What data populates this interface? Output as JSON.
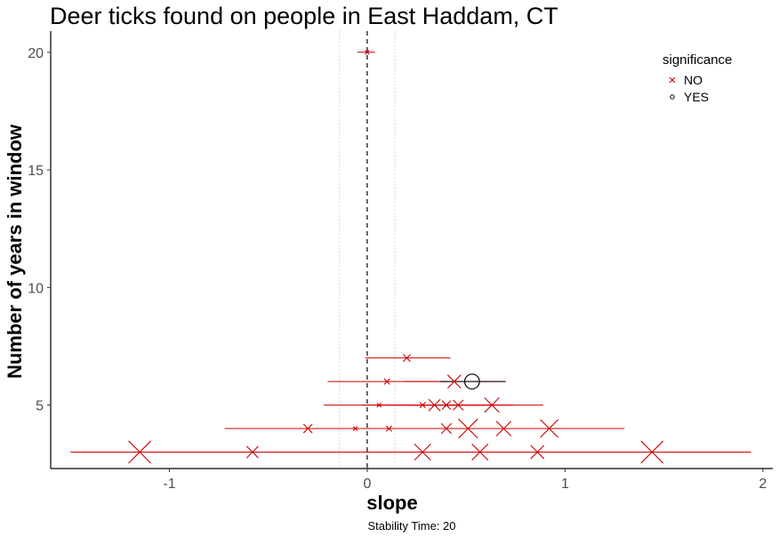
{
  "chart_data": {
    "type": "scatter",
    "title": "Deer ticks found on people in East Haddam, CT",
    "xlabel": "slope",
    "ylabel": "Number of years in window",
    "caption": "Stability Time: 20",
    "xlim": [
      -1.6,
      2.05
    ],
    "ylim": [
      2.3,
      20.9
    ],
    "x_ticks": [
      -1,
      0,
      1,
      2
    ],
    "y_ticks": [
      5,
      10,
      15,
      20
    ],
    "x_tick_labels": [
      "-1",
      "0",
      "1",
      "2"
    ],
    "y_tick_labels": [
      "5",
      "10",
      "15",
      "20"
    ],
    "reference_lines": {
      "dashed_x": 0,
      "dotted_x": [
        -0.14,
        0.14
      ]
    },
    "grid": false,
    "legend": {
      "title": "significance",
      "placement": "top-right",
      "entries": [
        {
          "label": "NO",
          "shape": "cross",
          "color": "#cc0000"
        },
        {
          "label": "YES",
          "shape": "circle",
          "color": "#000000"
        }
      ]
    },
    "colors": {
      "not_significant": "#cc0000",
      "significant": "#000000"
    },
    "points": [
      {
        "window": 20,
        "slope": 0.0,
        "lo": -0.05,
        "hi": 0.04,
        "sig": "NO",
        "size": 1
      },
      {
        "window": 7,
        "slope": 0.2,
        "lo": -0.01,
        "hi": 0.42,
        "sig": "NO",
        "size": 3
      },
      {
        "window": 6,
        "slope": 0.1,
        "lo": -0.2,
        "hi": 0.4,
        "sig": "NO",
        "size": 2
      },
      {
        "window": 6,
        "slope": 0.44,
        "lo": 0.19,
        "hi": 0.7,
        "sig": "NO",
        "size": 7
      },
      {
        "window": 6,
        "slope": 0.53,
        "lo": 0.37,
        "hi": 0.7,
        "sig": "YES",
        "size": 8
      },
      {
        "window": 5,
        "slope": 0.06,
        "lo": -0.22,
        "hi": 0.34,
        "sig": "NO",
        "size": 1
      },
      {
        "window": 5,
        "slope": 0.28,
        "lo": -0.03,
        "hi": 0.6,
        "sig": "NO",
        "size": 2
      },
      {
        "window": 5,
        "slope": 0.34,
        "lo": 0.04,
        "hi": 0.64,
        "sig": "NO",
        "size": 6
      },
      {
        "window": 5,
        "slope": 0.4,
        "lo": 0.12,
        "hi": 0.7,
        "sig": "NO",
        "size": 4
      },
      {
        "window": 5,
        "slope": 0.46,
        "lo": 0.2,
        "hi": 0.74,
        "sig": "NO",
        "size": 5
      },
      {
        "window": 5,
        "slope": 0.63,
        "lo": 0.35,
        "hi": 0.89,
        "sig": "NO",
        "size": 8
      },
      {
        "window": 4,
        "slope": -0.06,
        "lo": -0.72,
        "hi": 0.6,
        "sig": "NO",
        "size": 1
      },
      {
        "window": 4,
        "slope": -0.3,
        "lo": -0.72,
        "hi": 0.12,
        "sig": "NO",
        "size": 4
      },
      {
        "window": 4,
        "slope": 0.11,
        "lo": -0.5,
        "hi": 0.72,
        "sig": "NO",
        "size": 2
      },
      {
        "window": 4,
        "slope": 0.4,
        "lo": -0.2,
        "hi": 1.0,
        "sig": "NO",
        "size": 5
      },
      {
        "window": 4,
        "slope": 0.51,
        "lo": 0.0,
        "hi": 1.1,
        "sig": "NO",
        "size": 11
      },
      {
        "window": 4,
        "slope": 0.69,
        "lo": 0.1,
        "hi": 1.3,
        "sig": "NO",
        "size": 8
      },
      {
        "window": 4,
        "slope": 0.92,
        "lo": 0.4,
        "hi": 1.3,
        "sig": "NO",
        "size": 10
      },
      {
        "window": 3,
        "slope": -1.15,
        "lo": -1.5,
        "hi": -0.6,
        "sig": "NO",
        "size": 13
      },
      {
        "window": 3,
        "slope": -0.58,
        "lo": -1.2,
        "hi": 0.1,
        "sig": "NO",
        "size": 6
      },
      {
        "window": 3,
        "slope": 0.28,
        "lo": -0.6,
        "hi": 1.2,
        "sig": "NO",
        "size": 9
      },
      {
        "window": 3,
        "slope": 0.57,
        "lo": -0.4,
        "hi": 1.5,
        "sig": "NO",
        "size": 9
      },
      {
        "window": 3,
        "slope": 0.86,
        "lo": 0.0,
        "hi": 1.7,
        "sig": "NO",
        "size": 7
      },
      {
        "window": 3,
        "slope": 1.44,
        "lo": 0.8,
        "hi": 1.94,
        "sig": "NO",
        "size": 13
      }
    ]
  }
}
